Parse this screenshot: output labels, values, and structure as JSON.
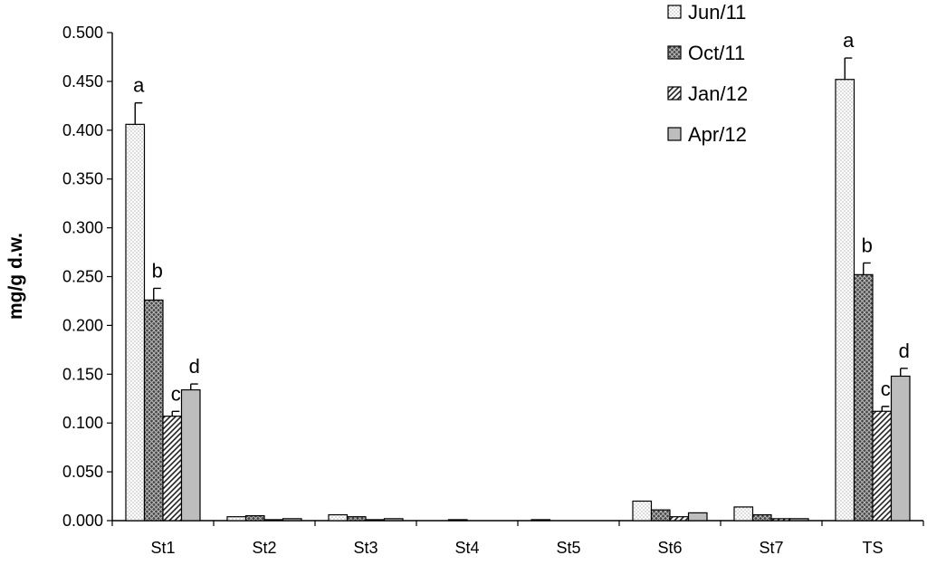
{
  "chart_data": {
    "type": "bar",
    "ylabel": "mg/g d.w.",
    "xlabel": "",
    "ylim": [
      0,
      0.5
    ],
    "yticks": [
      "0.000",
      "0.050",
      "0.100",
      "0.150",
      "0.200",
      "0.250",
      "0.300",
      "0.350",
      "0.400",
      "0.450",
      "0.500"
    ],
    "categories": [
      "St1",
      "St2",
      "St3",
      "St4",
      "St5",
      "St6",
      "St7",
      "TS"
    ],
    "legend_position": "top-right",
    "series": [
      {
        "name": "Jun/11",
        "pattern": "dots",
        "values": [
          0.406,
          0.004,
          0.006,
          0.0,
          0.001,
          0.02,
          0.014,
          0.452
        ],
        "errors": [
          0.022,
          0,
          0,
          0,
          0,
          0,
          0,
          0.022
        ],
        "sig_labels": [
          "a",
          "",
          "",
          "",
          "",
          "",
          "",
          "a"
        ]
      },
      {
        "name": "Oct/11",
        "pattern": "crosshatch",
        "values": [
          0.226,
          0.005,
          0.004,
          0.001,
          0.0,
          0.011,
          0.006,
          0.252
        ],
        "errors": [
          0.012,
          0,
          0,
          0,
          0,
          0,
          0,
          0.012
        ],
        "sig_labels": [
          "b",
          "",
          "",
          "",
          "",
          "",
          "",
          "b"
        ]
      },
      {
        "name": "Jan/12",
        "pattern": "diagonal",
        "values": [
          0.107,
          0.001,
          0.001,
          0.0,
          0.0,
          0.004,
          0.002,
          0.112
        ],
        "errors": [
          0.005,
          0,
          0,
          0,
          0,
          0,
          0,
          0.005
        ],
        "sig_labels": [
          "c",
          "",
          "",
          "",
          "",
          "",
          "",
          "c"
        ]
      },
      {
        "name": "Apr/12",
        "pattern": "gray",
        "values": [
          0.134,
          0.002,
          0.002,
          0.0,
          0.0,
          0.008,
          0.002,
          0.148
        ],
        "errors": [
          0.006,
          0,
          0,
          0,
          0,
          0,
          0,
          0.008
        ],
        "sig_labels": [
          "d",
          "",
          "",
          "",
          "",
          "",
          "",
          "d"
        ]
      }
    ]
  }
}
